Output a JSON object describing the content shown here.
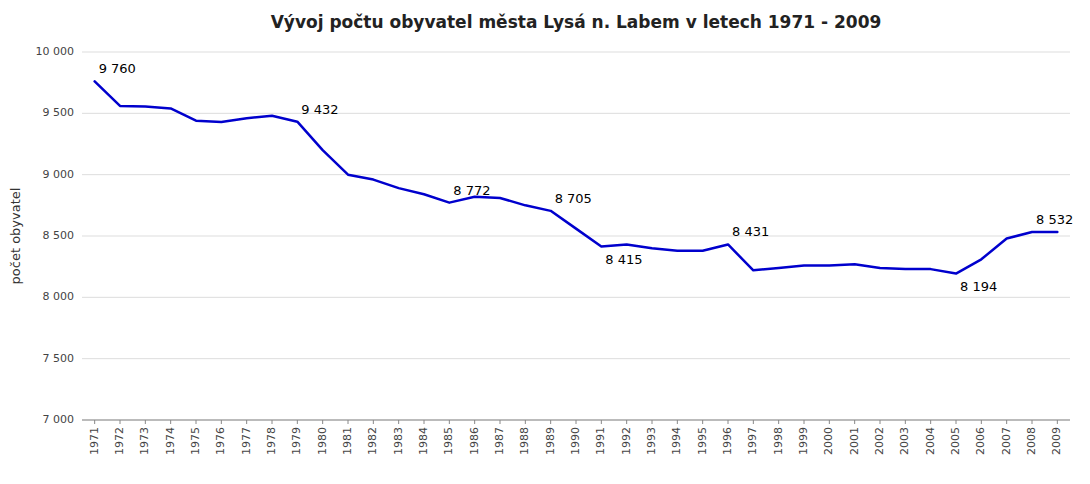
{
  "chart_data": {
    "type": "line",
    "title": "Vývoj počtu obyvatel města Lysá n. Labem v letech 1971 - 2009",
    "y_label": "počet obyvatel",
    "x": [
      1971,
      1972,
      1973,
      1974,
      1975,
      1976,
      1977,
      1978,
      1979,
      1980,
      1981,
      1982,
      1983,
      1984,
      1985,
      1986,
      1987,
      1988,
      1989,
      1990,
      1991,
      1992,
      1993,
      1994,
      1995,
      1996,
      1997,
      1998,
      1999,
      2000,
      2001,
      2002,
      2003,
      2004,
      2005,
      2006,
      2007,
      2008,
      2009
    ],
    "values": [
      9760,
      9560,
      9555,
      9540,
      9440,
      9430,
      9460,
      9480,
      9432,
      9200,
      9000,
      8960,
      8890,
      8840,
      8772,
      8820,
      8810,
      8750,
      8705,
      8560,
      8415,
      8430,
      8400,
      8380,
      8380,
      8431,
      8220,
      8240,
      8260,
      8260,
      8270,
      8240,
      8230,
      8230,
      8194,
      8310,
      8480,
      8532,
      8532
    ],
    "color": "#0000CD",
    "xlim": [
      1970.5,
      2009.5
    ],
    "xticks": [
      1971,
      1972,
      1973,
      1974,
      1975,
      1976,
      1977,
      1978,
      1979,
      1980,
      1981,
      1982,
      1983,
      1984,
      1985,
      1986,
      1987,
      1988,
      1989,
      1990,
      1991,
      1992,
      1993,
      1994,
      1995,
      1996,
      1997,
      1998,
      1999,
      2000,
      2001,
      2002,
      2003,
      2004,
      2005,
      2006,
      2007,
      2008,
      2009
    ],
    "ylim": [
      7000,
      10000
    ],
    "yticks": [
      {
        "value": 7000,
        "label": "7 000"
      },
      {
        "value": 7500,
        "label": "7 500"
      },
      {
        "value": 8000,
        "label": "8 000"
      },
      {
        "value": 8500,
        "label": "8 500"
      },
      {
        "value": 9000,
        "label": "9 000"
      },
      {
        "value": 9500,
        "label": "9 500"
      },
      {
        "value": 10000,
        "label": "10 000"
      }
    ],
    "grid": true,
    "annotations": [
      {
        "x": 1971,
        "y": 9760,
        "text": "9 760",
        "position": "above"
      },
      {
        "x": 1979,
        "y": 9432,
        "text": "9 432",
        "position": "above"
      },
      {
        "x": 1985,
        "y": 8772,
        "text": "8 772",
        "position": "above"
      },
      {
        "x": 1989,
        "y": 8705,
        "text": "8 705",
        "position": "above"
      },
      {
        "x": 1991,
        "y": 8415,
        "text": "8 415",
        "position": "below"
      },
      {
        "x": 1996,
        "y": 8431,
        "text": "8 431",
        "position": "above"
      },
      {
        "x": 2005,
        "y": 8194,
        "text": "8 194",
        "position": "below"
      },
      {
        "x": 2008,
        "y": 8532,
        "text": "8 532",
        "position": "above"
      }
    ]
  }
}
